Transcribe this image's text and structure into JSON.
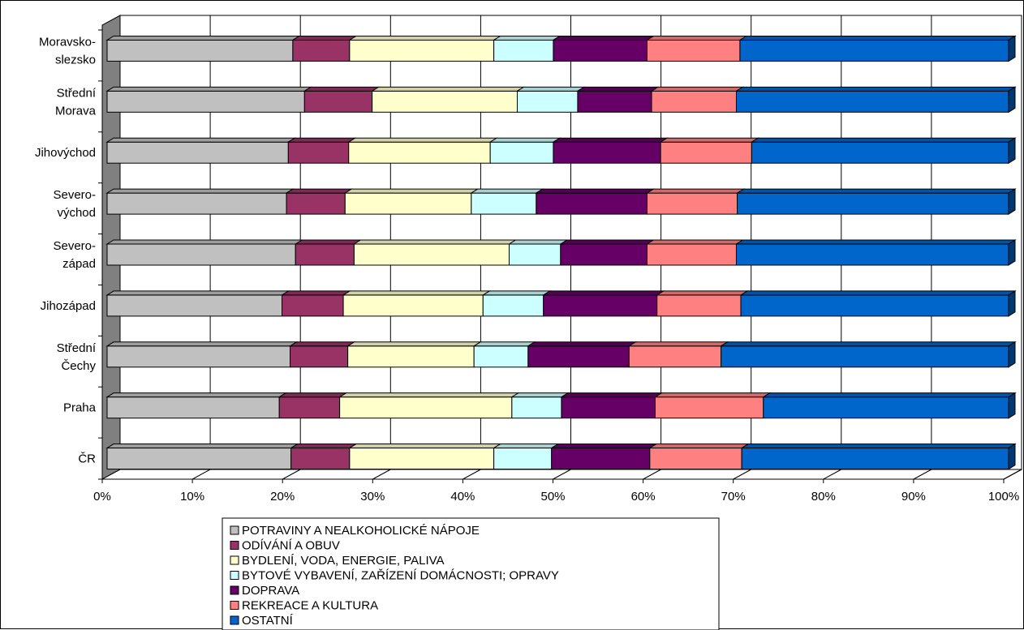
{
  "chart_data": {
    "type": "bar",
    "orientation": "horizontal",
    "stacked": "percent",
    "three_d": true,
    "title": "",
    "xlabel": "",
    "ylabel": "",
    "xlim": [
      0,
      100
    ],
    "x_ticks": [
      "0%",
      "10%",
      "20%",
      "30%",
      "40%",
      "50%",
      "60%",
      "70%",
      "80%",
      "90%",
      "100%"
    ],
    "grid": "vertical",
    "legend_position": "bottom",
    "categories": [
      [
        "ČR"
      ],
      [
        "Praha"
      ],
      [
        "Střední",
        "Čechy"
      ],
      [
        "Jihozápad"
      ],
      [
        "Severo-",
        "západ"
      ],
      [
        "Severo-",
        "východ"
      ],
      [
        "Jihovýchod"
      ],
      [
        "Střední",
        "Morava"
      ],
      [
        "Moravsko-",
        "slezsko"
      ]
    ],
    "series": [
      {
        "name": "POTRAVINY A NEALKOHOLICKÉ NÁPOJE",
        "color": "#c0c0c0",
        "values": [
          20.4,
          19.1,
          20.3,
          19.4,
          20.9,
          19.9,
          20.1,
          21.9,
          20.6
        ]
      },
      {
        "name": "ODÍVÁNÍ A OBUV",
        "color": "#993366",
        "values": [
          6.5,
          6.7,
          6.4,
          6.8,
          6.5,
          6.5,
          6.7,
          7.5,
          6.3
        ]
      },
      {
        "name": "BYDLENÍ, VODA, ENERGIE, PALIVA",
        "color": "#ffffcc",
        "values": [
          16.0,
          19.1,
          14.0,
          15.5,
          17.2,
          14.0,
          15.7,
          16.1,
          16.0
        ]
      },
      {
        "name": "BYTOVÉ VYBAVENÍ, ZAŘÍZENÍ DOMÁCNOSTI; OPRAVY",
        "color": "#ccffff",
        "values": [
          6.4,
          5.5,
          6.0,
          6.7,
          5.7,
          7.2,
          7.0,
          6.7,
          6.6
        ]
      },
      {
        "name": "DOPRAVA",
        "color": "#660066",
        "values": [
          10.9,
          10.4,
          11.2,
          12.6,
          9.6,
          12.3,
          11.9,
          8.2,
          10.4
        ]
      },
      {
        "name": "REKREACE A KULTURA",
        "color": "#ff8080",
        "values": [
          10.2,
          12.0,
          10.2,
          9.3,
          9.9,
          10.0,
          10.1,
          9.4,
          10.3
        ]
      },
      {
        "name": "OSTATNÍ",
        "color": "#0066cc",
        "values": [
          29.6,
          27.2,
          31.9,
          29.7,
          30.2,
          30.1,
          28.5,
          30.2,
          29.8
        ]
      }
    ]
  }
}
